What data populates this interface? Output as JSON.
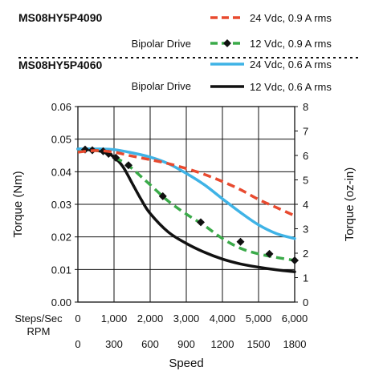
{
  "chart_data": {
    "type": "line",
    "xlabel": "Speed",
    "x_axis_rows": [
      {
        "label": "Steps/Sec",
        "ticks": [
          "0",
          "1,000",
          "2,000",
          "3,000",
          "4,000",
          "5,000",
          "6,000"
        ]
      },
      {
        "label": "RPM",
        "ticks": [
          "0",
          "300",
          "600",
          "900",
          "1200",
          "1500",
          "1800"
        ]
      }
    ],
    "xlim": [
      0,
      6000
    ],
    "ylabel": "Torque (Nm)",
    "ylim": [
      0,
      0.06
    ],
    "y_ticks": [
      "0.00",
      "0.01",
      "0.02",
      "0.03",
      "0.04",
      "0.05",
      "0.06"
    ],
    "y2label": "Torque (oz-in)",
    "y2lim": [
      0,
      8
    ],
    "y2_ticks": [
      "0",
      "1",
      "2",
      "3",
      "4",
      "5",
      "6",
      "7",
      "8"
    ],
    "grid": true,
    "groups": [
      {
        "model": "MS08HY5P4090",
        "drive": "Bipolar Drive"
      },
      {
        "model": "MS08HY5P4060",
        "drive": "Bipolar Drive"
      }
    ],
    "series": [
      {
        "name": "24 Vdc, 0.9 A rms",
        "color": "#e84a2f",
        "style": "dashed",
        "marker": "none",
        "x": [
          0,
          500,
          1000,
          1500,
          2000,
          2500,
          3000,
          3500,
          4000,
          4500,
          5000,
          5500,
          6000
        ],
        "y": [
          0.046,
          0.0465,
          0.046,
          0.0448,
          0.0437,
          0.0425,
          0.041,
          0.0392,
          0.037,
          0.0345,
          0.0315,
          0.029,
          0.0265
        ]
      },
      {
        "name": "12 Vdc, 0.9 A rms",
        "color": "#3aaa49",
        "style": "dashed",
        "marker": "diamond",
        "x": [
          0,
          250,
          500,
          750,
          1000,
          1250,
          1500,
          1750,
          2000,
          2500,
          3000,
          3500,
          4000,
          4500,
          5000,
          5500,
          6000
        ],
        "y": [
          0.046,
          0.0465,
          0.0465,
          0.046,
          0.0445,
          0.043,
          0.041,
          0.0385,
          0.036,
          0.031,
          0.027,
          0.0235,
          0.0195,
          0.0165,
          0.0148,
          0.0137,
          0.0128
        ],
        "markers_x": [
          200,
          400,
          700,
          850,
          1050,
          1400,
          2350,
          3400,
          4500,
          5300,
          6000
        ],
        "markers_y": [
          0.0468,
          0.0466,
          0.0463,
          0.0455,
          0.0443,
          0.042,
          0.0325,
          0.0245,
          0.0185,
          0.0148,
          0.0128
        ]
      },
      {
        "name": "24 Vdc, 0.6 A rms",
        "color": "#3fb3e6",
        "style": "solid",
        "marker": "none",
        "x": [
          0,
          500,
          1000,
          1500,
          2000,
          2500,
          3000,
          3500,
          4000,
          4500,
          5000,
          5500,
          6000
        ],
        "y": [
          0.047,
          0.047,
          0.0468,
          0.0458,
          0.0445,
          0.0425,
          0.0395,
          0.036,
          0.0317,
          0.0275,
          0.0237,
          0.021,
          0.0195
        ]
      },
      {
        "name": "12 Vdc, 0.6 A rms",
        "color": "#111111",
        "style": "solid",
        "marker": "none",
        "x": [
          0,
          250,
          500,
          750,
          1000,
          1250,
          1500,
          1750,
          2000,
          2500,
          3000,
          3500,
          4000,
          4500,
          5000,
          5500,
          6000
        ],
        "y": [
          0.047,
          0.0468,
          0.0465,
          0.046,
          0.0445,
          0.0415,
          0.0365,
          0.0315,
          0.0272,
          0.0215,
          0.018,
          0.0153,
          0.0132,
          0.0117,
          0.0107,
          0.0099,
          0.0093
        ]
      }
    ]
  }
}
